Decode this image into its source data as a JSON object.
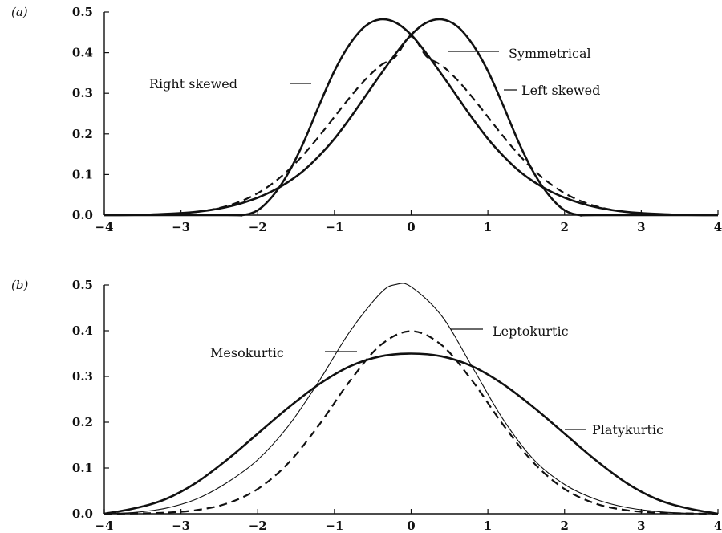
{
  "chart_data": [
    {
      "type": "line",
      "panel_label": "(a)",
      "title": "",
      "xlabel": "",
      "ylabel": "",
      "xlim": [
        -4,
        4
      ],
      "ylim": [
        0,
        0.5
      ],
      "xticks": [
        -4,
        -3,
        -2,
        -1,
        0,
        1,
        2,
        3,
        4
      ],
      "xtick_labels": [
        "−4",
        "−3",
        "−2",
        "−1",
        "0",
        "1",
        "2",
        "3",
        "4"
      ],
      "yticks": [
        0.0,
        0.1,
        0.2,
        0.3,
        0.4,
        0.5
      ],
      "ytick_labels": [
        "0.0",
        "0.1",
        "0.2",
        "0.3",
        "0.4",
        "0.5"
      ],
      "grid": false,
      "series": [
        {
          "name": "Right skewed",
          "style": "solid",
          "x": [
            -4,
            -2.4,
            -2.2,
            -2.0,
            -1.8,
            -1.6,
            -1.4,
            -1.2,
            -1.0,
            -0.8,
            -0.6,
            -0.4,
            -0.2,
            0.0,
            0.2,
            0.4,
            0.6,
            0.8,
            1.0,
            1.2,
            1.4,
            1.6,
            1.8,
            2.0,
            2.2,
            2.4,
            2.6,
            2.8,
            3.0,
            3.2,
            3.4,
            3.6,
            3.8,
            4.0
          ],
          "y": [
            0.0,
            0.0,
            0.0,
            0.012,
            0.048,
            0.104,
            0.18,
            0.27,
            0.355,
            0.421,
            0.465,
            0.482,
            0.474,
            0.444,
            0.398,
            0.346,
            0.292,
            0.238,
            0.188,
            0.146,
            0.11,
            0.082,
            0.06,
            0.043,
            0.03,
            0.02,
            0.013,
            0.008,
            0.005,
            0.003,
            0.0015,
            0.0007,
            0.0002,
            0.0
          ]
        },
        {
          "name": "Symmetrical",
          "style": "dashed",
          "x": [
            -4.0,
            -3.8,
            -3.6,
            -3.4,
            -3.2,
            -3.0,
            -2.8,
            -2.6,
            -2.4,
            -2.2,
            -2.0,
            -1.8,
            -1.6,
            -1.4,
            -1.2,
            -1.0,
            -0.8,
            -0.6,
            -0.4,
            -0.2,
            0.0,
            0.2,
            0.4,
            0.6,
            0.8,
            1.0,
            1.2,
            1.4,
            1.6,
            1.8,
            2.0,
            2.2,
            2.4,
            2.6,
            2.8,
            3.0,
            3.2,
            3.4,
            3.6,
            3.8,
            4.0
          ],
          "y": [
            0.0001,
            0.0003,
            0.0006,
            0.0012,
            0.0024,
            0.0044,
            0.0079,
            0.0136,
            0.0224,
            0.0355,
            0.054,
            0.079,
            0.1109,
            0.1497,
            0.1942,
            0.242,
            0.2897,
            0.3332,
            0.3683,
            0.391,
            0.44,
            0.391,
            0.3683,
            0.3332,
            0.2897,
            0.242,
            0.1942,
            0.1497,
            0.1109,
            0.079,
            0.054,
            0.0355,
            0.0224,
            0.0136,
            0.0079,
            0.0044,
            0.0024,
            0.0012,
            0.0006,
            0.0003,
            0.0001
          ]
        },
        {
          "name": "Left skewed",
          "style": "solid",
          "x": [
            -4.0,
            -3.8,
            -3.6,
            -3.4,
            -3.2,
            -3.0,
            -2.8,
            -2.6,
            -2.4,
            -2.2,
            -2.0,
            -1.8,
            -1.6,
            -1.4,
            -1.2,
            -1.0,
            -0.8,
            -0.6,
            -0.4,
            -0.2,
            0.0,
            0.2,
            0.4,
            0.6,
            0.8,
            1.0,
            1.2,
            1.4,
            1.6,
            1.8,
            2.0,
            2.2,
            2.4,
            4.0
          ],
          "y": [
            0.0,
            0.0002,
            0.0007,
            0.0015,
            0.003,
            0.005,
            0.008,
            0.013,
            0.02,
            0.03,
            0.043,
            0.06,
            0.082,
            0.11,
            0.146,
            0.188,
            0.238,
            0.292,
            0.346,
            0.398,
            0.444,
            0.474,
            0.482,
            0.465,
            0.421,
            0.355,
            0.27,
            0.18,
            0.104,
            0.048,
            0.012,
            0.0,
            0.0,
            0.0
          ]
        }
      ],
      "annotations": [
        {
          "text": "Right skewed",
          "series": "Right skewed"
        },
        {
          "text": "Symmetrical",
          "series": "Symmetrical"
        },
        {
          "text": "Left skewed",
          "series": "Left skewed"
        }
      ]
    },
    {
      "type": "line",
      "panel_label": "(b)",
      "title": "",
      "xlabel": "",
      "ylabel": "",
      "xlim": [
        -4,
        4
      ],
      "ylim": [
        0,
        0.5
      ],
      "xticks": [
        -4,
        -3,
        -2,
        -1,
        0,
        1,
        2,
        3,
        4
      ],
      "xtick_labels": [
        "−4",
        "−3",
        "−2",
        "−1",
        "0",
        "1",
        "2",
        "3",
        "4"
      ],
      "yticks": [
        0.0,
        0.1,
        0.2,
        0.3,
        0.4,
        0.5
      ],
      "ytick_labels": [
        "0.0",
        "0.1",
        "0.2",
        "0.3",
        "0.4",
        "0.5"
      ],
      "grid": false,
      "series": [
        {
          "name": "Leptokurtic",
          "style": "thin",
          "x": [
            -4.0,
            -3.6,
            -3.2,
            -2.8,
            -2.4,
            -2.0,
            -1.6,
            -1.2,
            -0.8,
            -0.4,
            -0.2,
            0.0,
            0.4,
            0.8,
            1.2,
            1.6,
            2.0,
            2.4,
            2.8,
            3.2,
            3.6,
            4.0
          ],
          "y": [
            0.0,
            0.003,
            0.012,
            0.032,
            0.068,
            0.118,
            0.192,
            0.29,
            0.398,
            0.482,
            0.501,
            0.496,
            0.432,
            0.32,
            0.206,
            0.118,
            0.064,
            0.032,
            0.014,
            0.005,
            0.001,
            0.0
          ]
        },
        {
          "name": "Mesokurtic",
          "style": "dashed",
          "x": [
            -4.0,
            -3.6,
            -3.2,
            -2.8,
            -2.4,
            -2.0,
            -1.6,
            -1.2,
            -0.8,
            -0.4,
            0.0,
            0.4,
            0.8,
            1.2,
            1.6,
            2.0,
            2.4,
            2.8,
            3.2,
            3.6,
            4.0
          ],
          "y": [
            0.0001,
            0.0006,
            0.0024,
            0.0079,
            0.0224,
            0.054,
            0.1109,
            0.1942,
            0.2897,
            0.3683,
            0.399,
            0.3683,
            0.2897,
            0.1942,
            0.1109,
            0.054,
            0.0224,
            0.0079,
            0.0024,
            0.0006,
            0.0001
          ]
        },
        {
          "name": "Platykurtic",
          "style": "solid",
          "x": [
            -4.0,
            -3.6,
            -3.2,
            -2.8,
            -2.4,
            -2.0,
            -1.6,
            -1.2,
            -0.8,
            -0.4,
            0.0,
            0.4,
            0.8,
            1.2,
            1.6,
            2.0,
            2.4,
            2.8,
            3.2,
            3.6,
            4.0
          ],
          "y": [
            0.0,
            0.012,
            0.032,
            0.068,
            0.118,
            0.175,
            0.232,
            0.283,
            0.322,
            0.344,
            0.35,
            0.344,
            0.322,
            0.283,
            0.232,
            0.175,
            0.118,
            0.068,
            0.032,
            0.012,
            0.0
          ]
        }
      ],
      "annotations": [
        {
          "text": "Mesokurtic",
          "series": "Mesokurtic"
        },
        {
          "text": "Leptokurtic",
          "series": "Leptokurtic"
        },
        {
          "text": "Platykurtic",
          "series": "Platykurtic"
        }
      ]
    }
  ]
}
